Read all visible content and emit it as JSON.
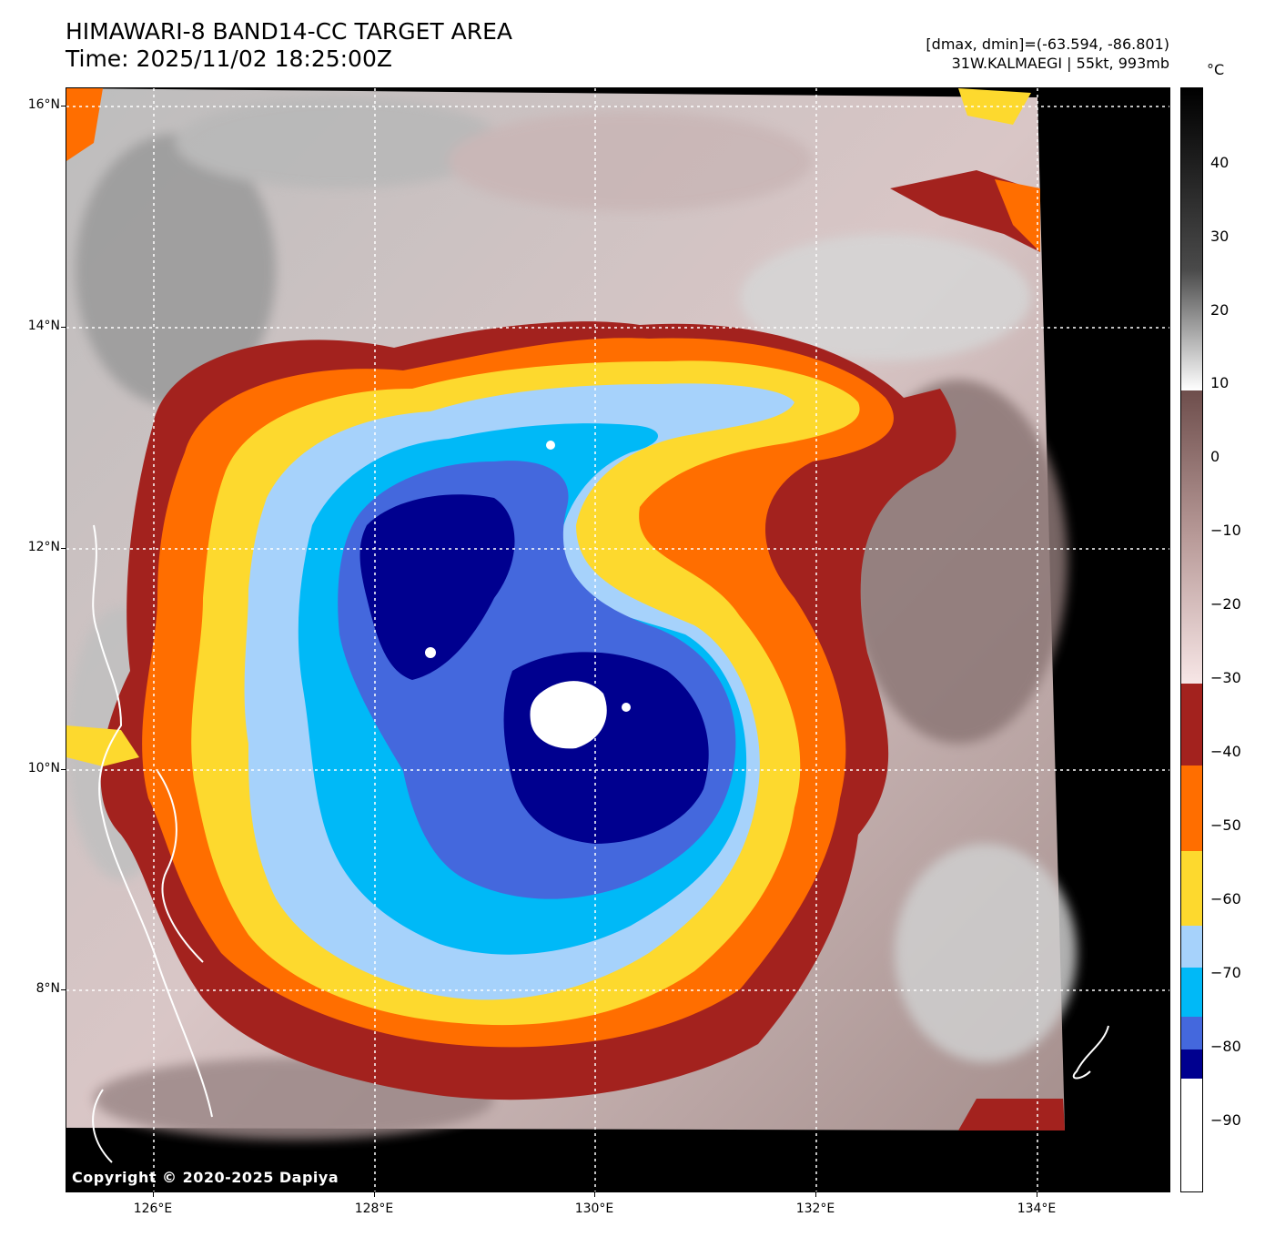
{
  "header": {
    "title_line1": "HIMAWARI-8 BAND14-CC TARGET AREA",
    "title_line2": "Time: 2025/11/02 18:25:00Z",
    "dmax_dmin": "[dmax, dmin]=(-63.594, -86.801)",
    "storm_info": "31W.KALMAEGI | 55kt, 993mb"
  },
  "map": {
    "lat_labels": [
      "16°N",
      "14°N",
      "12°N",
      "10°N",
      "8°N"
    ],
    "lon_labels": [
      "126°E",
      "128°E",
      "130°E",
      "132°E",
      "134°E"
    ],
    "copyright": "Copyright © 2020-2025 Dapiya"
  },
  "colorbar": {
    "unit": "°C",
    "ticks": [
      "40",
      "30",
      "20",
      "10",
      "0",
      "−10",
      "−20",
      "−30",
      "−40",
      "−50",
      "−60",
      "−70",
      "−80",
      "−90"
    ],
    "colors": {
      "warm_top": "#000000",
      "warm_mid": "#ffffff",
      "brown": "#7a5a58",
      "pink": "#f3dede",
      "dark_red": "#a3221e",
      "orange": "#ff6e00",
      "yellow": "#fdd92e",
      "light_blue": "#a6d2fb",
      "cyan": "#00b9f7",
      "royal_blue": "#4468dd",
      "navy": "#00008f",
      "white": "#ffffff"
    }
  }
}
